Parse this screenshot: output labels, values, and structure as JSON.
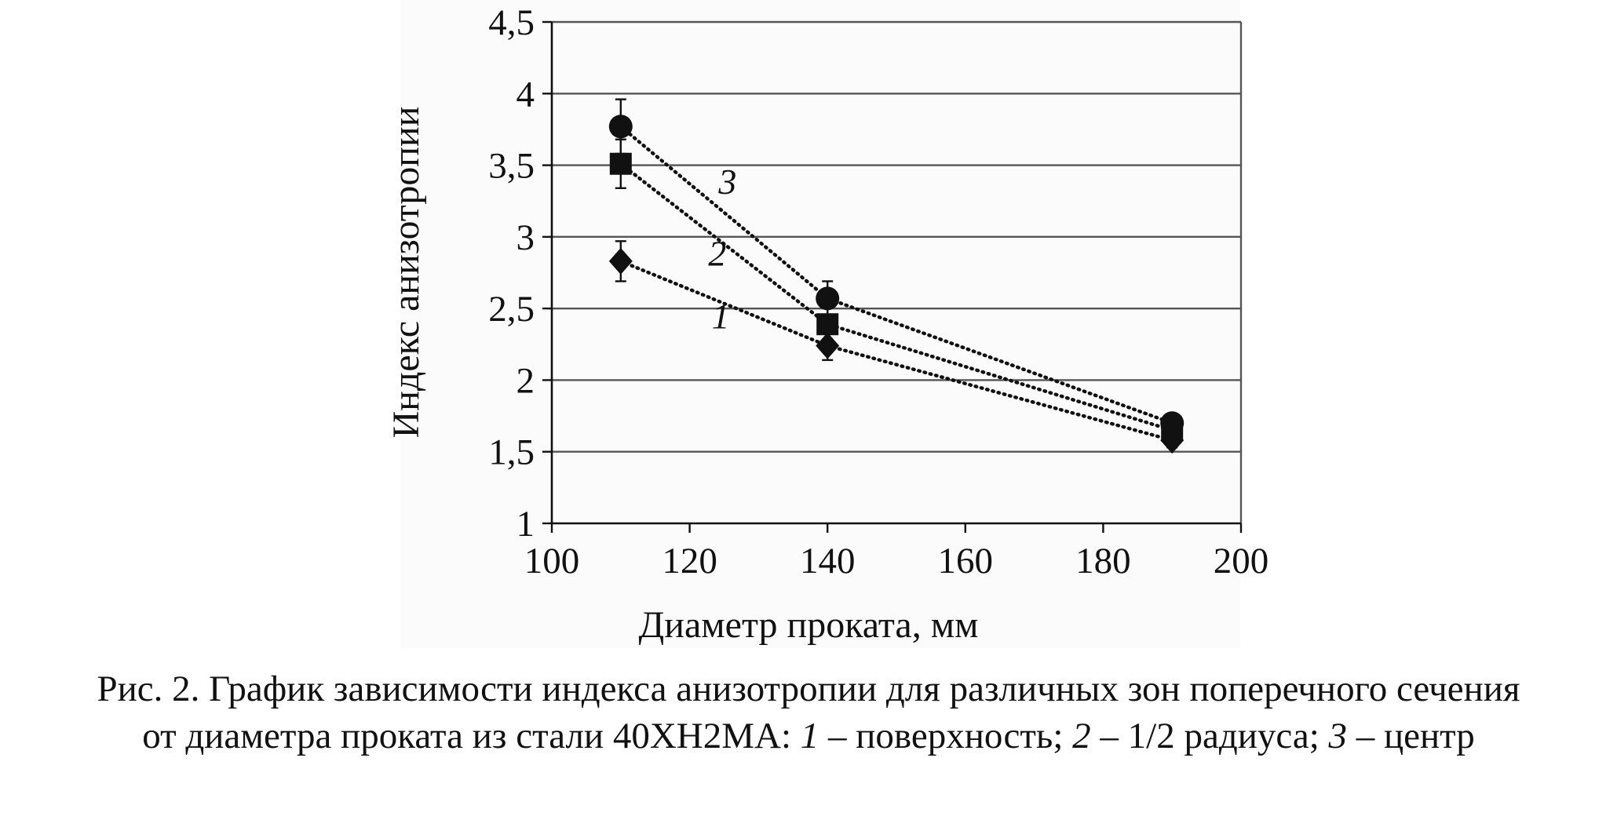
{
  "chart_data": {
    "type": "line",
    "title": "",
    "xlabel": "Диаметр проката, мм",
    "ylabel": "Индекс анизотропии",
    "xlim": [
      100,
      200
    ],
    "ylim": [
      1,
      4.5
    ],
    "x_ticks": [
      "100",
      "120",
      "140",
      "160",
      "180",
      "200"
    ],
    "y_ticks": [
      "1",
      "1,5",
      "2",
      "2,5",
      "3",
      "3,5",
      "4",
      "4,5"
    ],
    "grid": "horizontal",
    "line_style": "dotted",
    "series": [
      {
        "name": "1",
        "marker": "diamond",
        "x": [
          110,
          140,
          190
        ],
        "y": [
          2.83,
          2.24,
          1.58
        ],
        "err": [
          0.14,
          0.1,
          0.05
        ]
      },
      {
        "name": "2",
        "marker": "square",
        "x": [
          110,
          140,
          190
        ],
        "y": [
          3.51,
          2.39,
          1.65
        ],
        "err": [
          0.17,
          0.12,
          0.05
        ]
      },
      {
        "name": "3",
        "marker": "circle",
        "x": [
          110,
          140,
          190
        ],
        "y": [
          3.77,
          2.57,
          1.7
        ],
        "err": [
          0.19,
          0.12,
          0.05
        ]
      }
    ]
  },
  "caption": {
    "line1": "Рис. 2. График зависимости индекса анизотропии для различных зон поперечного сечения",
    "line2_prefix": "от диаметра проката из стали 40ХН2МА: ",
    "item1_num": "1",
    "item1_text": " – поверхность; ",
    "item2_num": "2",
    "item2_text": " – 1/2 радиуса; ",
    "item3_num": "3",
    "item3_text": " – центр"
  },
  "colors": {
    "ink": "#111111",
    "grid": "#555555",
    "background": "#fbfbfb"
  }
}
